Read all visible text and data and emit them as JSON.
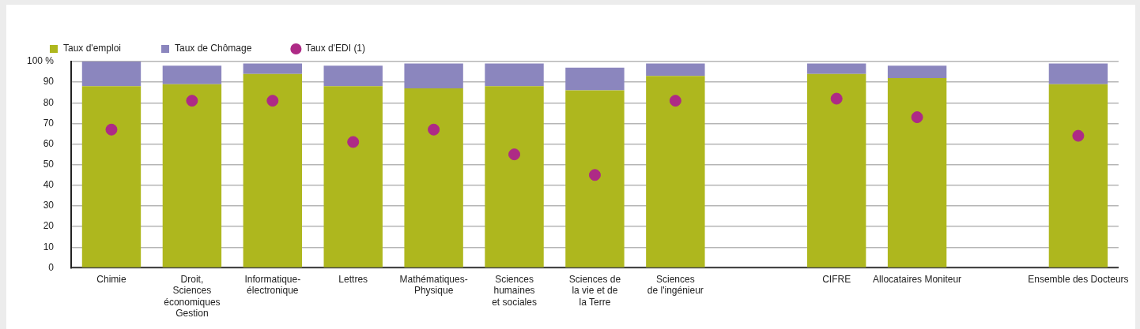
{
  "chart_data": {
    "type": "bar",
    "stacked": true,
    "legend": "top",
    "grid": "y",
    "marker": "circle",
    "categories": [
      "Chimie",
      "Droit,\nSciences\néconomiques\nGestion",
      "Informatique-\nélectronique",
      "Lettres",
      "Mathématiques-\nPhysique",
      "Sciences\nhumaines\net sociales",
      "Sciences de\nla vie et de\nla Terre",
      "Sciences\nde l'ingénieur",
      null,
      "CIFRE",
      "Allocataires Moniteur",
      null,
      "Ensemble des Docteurs"
    ],
    "series": [
      {
        "name": "Taux d'emploi",
        "color": "#aeb71e",
        "values": [
          88,
          89,
          94,
          88,
          87,
          88,
          86,
          93,
          null,
          94,
          92,
          null,
          89
        ]
      },
      {
        "name": "Taux de Chômage",
        "color": "#8b86be",
        "values": [
          12,
          9,
          5,
          10,
          12,
          11,
          11,
          6,
          null,
          5,
          6,
          null,
          10
        ]
      },
      {
        "name": "Taux d'EDI (1)",
        "type": "scatter",
        "color": "#ae2a86",
        "values": [
          67,
          81,
          81,
          61,
          67,
          55,
          45,
          81,
          null,
          82,
          73,
          null,
          64
        ]
      }
    ],
    "ylim": [
      0,
      100
    ],
    "yticks": [
      0,
      10,
      20,
      30,
      40,
      50,
      60,
      70,
      80,
      90,
      {
        "value": 100,
        "label": "100 %"
      }
    ]
  }
}
